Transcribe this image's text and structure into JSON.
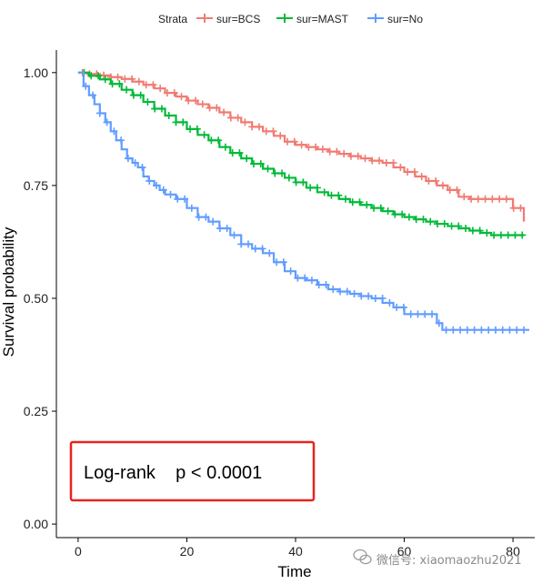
{
  "chart_data": {
    "type": "line",
    "subtype": "kaplan-meier",
    "xlabel": "Time",
    "ylabel": "Survival probability",
    "xlim": [
      -4,
      84
    ],
    "ylim": [
      -0.03,
      1.05
    ],
    "x_ticks": [
      0,
      20,
      40,
      60,
      80
    ],
    "y_ticks": [
      0.0,
      0.25,
      0.5,
      0.75,
      1.0
    ],
    "y_tick_labels": [
      "0.00",
      "0.25",
      "0.50",
      "0.75",
      "1.00"
    ],
    "grid": false,
    "legend": {
      "title": "Strata",
      "placement": "top",
      "entries": [
        "sur=BCS",
        "sur=MAST",
        "sur=No"
      ]
    },
    "annotation": {
      "text": "Log-rank    p < 0.0001",
      "placement": "bottom-left",
      "border_color": "#e8231e"
    },
    "series": [
      {
        "name": "sur=BCS",
        "color": "#f07b72",
        "x": [
          0,
          2,
          4,
          6,
          8,
          10,
          12,
          14,
          16,
          18,
          20,
          22,
          24,
          26,
          28,
          30,
          32,
          34,
          36,
          38,
          40,
          42,
          44,
          46,
          48,
          50,
          52,
          54,
          56,
          58,
          60,
          62,
          64,
          66,
          68,
          70,
          72,
          74,
          76,
          78,
          80,
          81,
          82
        ],
        "y": [
          1.0,
          0.997,
          0.994,
          0.99,
          0.986,
          0.98,
          0.973,
          0.965,
          0.955,
          0.947,
          0.938,
          0.93,
          0.922,
          0.912,
          0.9,
          0.89,
          0.88,
          0.87,
          0.86,
          0.847,
          0.84,
          0.835,
          0.83,
          0.825,
          0.82,
          0.815,
          0.81,
          0.805,
          0.8,
          0.79,
          0.78,
          0.77,
          0.76,
          0.75,
          0.74,
          0.725,
          0.72,
          0.72,
          0.72,
          0.72,
          0.7,
          0.7,
          0.67
        ]
      },
      {
        "name": "sur=MAST",
        "color": "#00ba38",
        "x": [
          0,
          2,
          4,
          6,
          8,
          10,
          12,
          14,
          16,
          18,
          20,
          22,
          24,
          26,
          28,
          30,
          32,
          34,
          36,
          38,
          40,
          42,
          44,
          46,
          48,
          50,
          52,
          54,
          56,
          58,
          60,
          62,
          64,
          66,
          68,
          70,
          72,
          74,
          76,
          78,
          80,
          82
        ],
        "y": [
          1.0,
          0.993,
          0.985,
          0.975,
          0.962,
          0.95,
          0.935,
          0.92,
          0.905,
          0.89,
          0.875,
          0.862,
          0.85,
          0.835,
          0.822,
          0.81,
          0.798,
          0.787,
          0.777,
          0.767,
          0.757,
          0.745,
          0.735,
          0.728,
          0.72,
          0.713,
          0.707,
          0.7,
          0.693,
          0.686,
          0.68,
          0.675,
          0.67,
          0.665,
          0.66,
          0.655,
          0.65,
          0.645,
          0.64,
          0.64,
          0.64,
          0.64
        ]
      },
      {
        "name": "sur=No",
        "color": "#619cff",
        "x": [
          0,
          1,
          2,
          3,
          4,
          5,
          6,
          7,
          8,
          9,
          10,
          11,
          12,
          13,
          14,
          15,
          16,
          18,
          20,
          22,
          24,
          26,
          28,
          30,
          32,
          34,
          36,
          38,
          40,
          42,
          44,
          46,
          48,
          50,
          52,
          54,
          56,
          58,
          60,
          62,
          64,
          66,
          67,
          70,
          75,
          80,
          83
        ],
        "y": [
          1.0,
          0.97,
          0.95,
          0.93,
          0.91,
          0.89,
          0.87,
          0.85,
          0.83,
          0.81,
          0.8,
          0.79,
          0.77,
          0.76,
          0.75,
          0.74,
          0.73,
          0.72,
          0.7,
          0.68,
          0.67,
          0.655,
          0.64,
          0.62,
          0.61,
          0.6,
          0.58,
          0.56,
          0.545,
          0.54,
          0.53,
          0.52,
          0.515,
          0.51,
          0.505,
          0.5,
          0.49,
          0.48,
          0.465,
          0.465,
          0.465,
          0.445,
          0.43,
          0.43,
          0.43,
          0.43,
          0.43
        ]
      }
    ]
  },
  "watermark": {
    "text": "微信号: xiaomaozhu2021"
  }
}
